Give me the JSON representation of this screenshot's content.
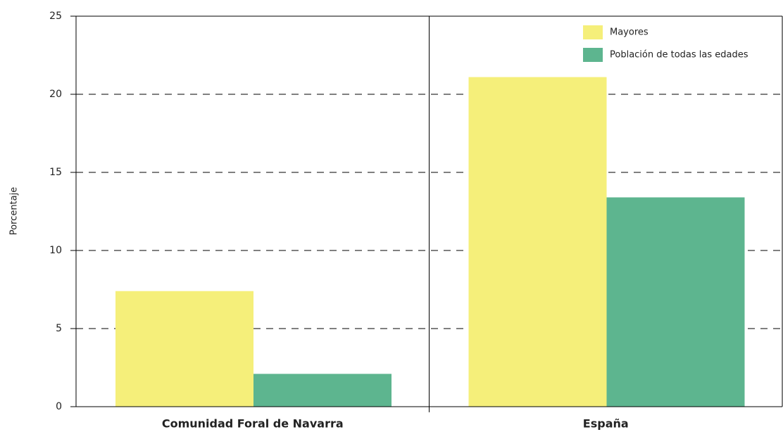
{
  "chart_data": {
    "type": "bar",
    "y_label": "Porcentaje",
    "categories": [
      "Comunidad Foral de Navarra",
      "España"
    ],
    "series": [
      {
        "name": "Mayores",
        "color": "#f5ef7a",
        "values": [
          7.4,
          21.1
        ]
      },
      {
        "name": "Población de todas las edades",
        "color": "#5db58f",
        "values": [
          2.1,
          13.4
        ]
      }
    ],
    "ylim": [
      0,
      25
    ],
    "yticks": [
      0,
      5,
      10,
      15,
      20,
      25
    ],
    "grid": true,
    "legend": "upper right"
  }
}
